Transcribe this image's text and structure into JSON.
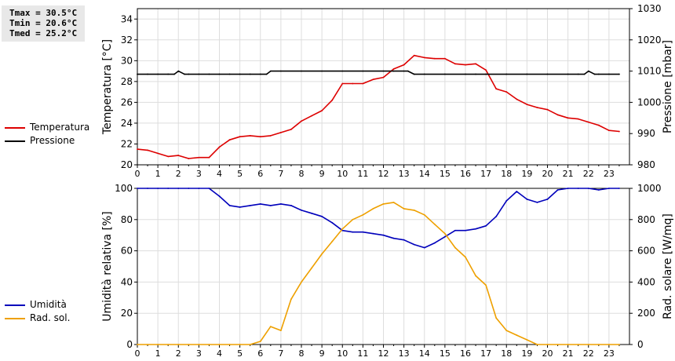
{
  "stats": {
    "tmax": "Tmax = 30.5°C",
    "tmin": "Tmin = 20.6°C",
    "tmed": "Tmed = 25.2°C"
  },
  "legend_top": [
    {
      "label": "Temperatura",
      "color": "#dd0000"
    },
    {
      "label": "Pressione",
      "color": "#000000"
    }
  ],
  "legend_bottom": [
    {
      "label": "Umidità",
      "color": "#0000bb"
    },
    {
      "label": "Rad. sol.",
      "color": "#eea000"
    }
  ],
  "chart_data": [
    {
      "type": "line",
      "xlim": [
        0,
        24
      ],
      "x_ticks": [
        0,
        1,
        2,
        3,
        4,
        5,
        6,
        7,
        8,
        9,
        10,
        11,
        12,
        13,
        14,
        15,
        16,
        17,
        18,
        19,
        20,
        21,
        22,
        23
      ],
      "ylabel_left": "Temperatura [°C]",
      "ylim_left": [
        20,
        35
      ],
      "yticks_left": [
        20,
        22,
        24,
        26,
        28,
        30,
        32,
        34
      ],
      "ylabel_right": "Pressione [mbar]",
      "ylim_right": [
        980,
        1030
      ],
      "yticks_right": [
        980,
        990,
        1000,
        1010,
        1020,
        1030
      ],
      "grid": true,
      "series": [
        {
          "name": "Temperatura",
          "axis": "left",
          "color": "#dd0000",
          "x": [
            0,
            0.5,
            1,
            1.5,
            2,
            2.5,
            3,
            3.5,
            4,
            4.5,
            5,
            5.5,
            6,
            6.5,
            7,
            7.5,
            8,
            8.5,
            9,
            9.5,
            10,
            10.5,
            11,
            11.5,
            12,
            12.5,
            13,
            13.5,
            14,
            14.5,
            15,
            15.5,
            16,
            16.5,
            17,
            17.5,
            18,
            18.5,
            19,
            19.5,
            20,
            20.5,
            21,
            21.5,
            22,
            22.5,
            23,
            23.5
          ],
          "y": [
            21.5,
            21.4,
            21.1,
            20.8,
            20.9,
            20.6,
            20.7,
            20.7,
            21.7,
            22.4,
            22.7,
            22.8,
            22.7,
            22.8,
            23.1,
            23.4,
            24.2,
            24.7,
            25.2,
            26.2,
            27.8,
            27.8,
            27.8,
            28.2,
            28.4,
            29.2,
            29.6,
            30.5,
            30.3,
            30.2,
            30.2,
            29.7,
            29.6,
            29.7,
            29.1,
            27.3,
            27.0,
            26.3,
            25.8,
            25.5,
            25.3,
            24.8,
            24.5,
            24.4,
            24.1,
            23.8,
            23.3,
            23.2
          ]
        },
        {
          "name": "Pressione",
          "axis": "right",
          "color": "#000000",
          "x": [
            0,
            0.5,
            1,
            1.5,
            1.8,
            2,
            2.3,
            2.5,
            3,
            3.5,
            4,
            4.5,
            5,
            5.5,
            6,
            6.3,
            6.5,
            7,
            8,
            9,
            10,
            11,
            12,
            12.5,
            13,
            13.2,
            13.5,
            14,
            15,
            16,
            16.5,
            17,
            18,
            19,
            20,
            21,
            21.5,
            21.8,
            22,
            22.3,
            22.5,
            23,
            23.5
          ],
          "y": [
            1009,
            1009,
            1009,
            1009,
            1009,
            1010,
            1009,
            1009,
            1009,
            1009,
            1009,
            1009,
            1009,
            1009,
            1009,
            1009,
            1010,
            1010,
            1010,
            1010,
            1010,
            1010,
            1010,
            1010,
            1010,
            1010,
            1009,
            1009,
            1009,
            1009,
            1009,
            1009,
            1009,
            1009,
            1009,
            1009,
            1009,
            1009,
            1010,
            1009,
            1009,
            1009,
            1009
          ]
        }
      ]
    },
    {
      "type": "line",
      "xlim": [
        0,
        24
      ],
      "x_ticks": [
        0,
        1,
        2,
        3,
        4,
        5,
        6,
        7,
        8,
        9,
        10,
        11,
        12,
        13,
        14,
        15,
        16,
        17,
        18,
        19,
        20,
        21,
        22,
        23
      ],
      "ylabel_left": "Umidità relativa [%]",
      "ylim_left": [
        0,
        100
      ],
      "yticks_left": [
        0,
        20,
        40,
        60,
        80,
        100
      ],
      "ylabel_right": "Rad. solare [W/mq]",
      "ylim_right": [
        0,
        1000
      ],
      "yticks_right": [
        0,
        200,
        400,
        600,
        800,
        1000
      ],
      "grid": true,
      "series": [
        {
          "name": "Umidità",
          "axis": "left",
          "color": "#0000bb",
          "x": [
            0,
            0.5,
            1,
            1.5,
            2,
            2.5,
            3,
            3.5,
            4,
            4.5,
            5,
            5.5,
            6,
            6.5,
            7,
            7.5,
            8,
            8.5,
            9,
            9.5,
            10,
            10.5,
            11,
            11.5,
            12,
            12.5,
            13,
            13.5,
            14,
            14.5,
            15,
            15.5,
            16,
            16.5,
            17,
            17.5,
            18,
            18.5,
            19,
            19.5,
            20,
            20.5,
            21,
            21.5,
            22,
            22.5,
            23,
            23.5
          ],
          "y": [
            100,
            100,
            100,
            100,
            100,
            100,
            100,
            100,
            95,
            89,
            88,
            89,
            90,
            89,
            90,
            89,
            86,
            84,
            82,
            78,
            73,
            72,
            72,
            71,
            70,
            68,
            67,
            64,
            62,
            65,
            69,
            73,
            73,
            74,
            76,
            82,
            92,
            98,
            93,
            91,
            93,
            99,
            100,
            100,
            100,
            99,
            100,
            100
          ]
        },
        {
          "name": "Rad. sol.",
          "axis": "right",
          "color": "#eea000",
          "x": [
            0,
            0.5,
            1,
            1.5,
            2,
            2.5,
            3,
            3.5,
            4,
            4.5,
            5,
            5.5,
            6,
            6.5,
            7,
            7.5,
            8,
            8.5,
            9,
            9.5,
            10,
            10.5,
            11,
            11.5,
            12,
            12.5,
            13,
            13.5,
            14,
            14.5,
            15,
            15.5,
            16,
            16.5,
            17,
            17.5,
            18,
            18.5,
            19,
            19.5,
            20,
            20.5,
            21,
            21.5,
            22,
            22.5,
            23,
            23.5
          ],
          "y": [
            0,
            0,
            0,
            0,
            0,
            0,
            0,
            0,
            0,
            0,
            0,
            0,
            20,
            115,
            90,
            290,
            400,
            490,
            580,
            660,
            740,
            800,
            830,
            870,
            900,
            910,
            870,
            860,
            830,
            770,
            710,
            620,
            560,
            440,
            380,
            170,
            90,
            60,
            30,
            0,
            0,
            0,
            0,
            0,
            0,
            0,
            0,
            0
          ]
        }
      ]
    }
  ]
}
